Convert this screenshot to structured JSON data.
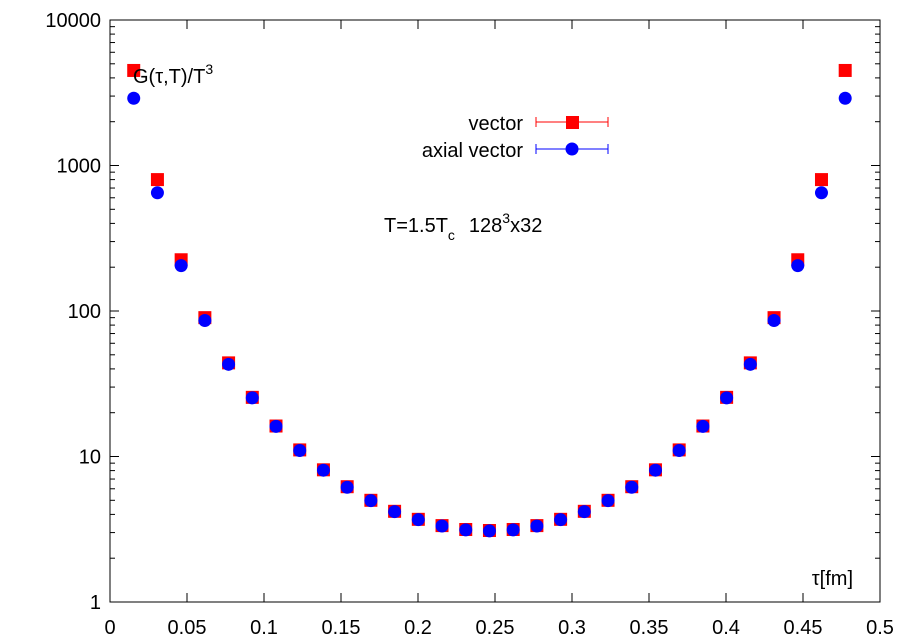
{
  "chart_data": {
    "type": "scatter",
    "ylabel": "G(τ,T)/T³",
    "ylabel_parts": {
      "main": "G(τ,T)/T",
      "sup": "3"
    },
    "xlabel": "τ[fm]",
    "annotation": "T=1.5Tc 128³x32",
    "annotation_parts": {
      "a": "T=1.5T",
      "a_sub": "c",
      "b": "128",
      "b_sup": "3",
      "c": "x32"
    },
    "xlim": [
      0,
      0.5
    ],
    "ylim": [
      1,
      10000
    ],
    "yscale": "log",
    "grid": false,
    "legend_position": "top-center",
    "xticks": [
      "0",
      "0.05",
      "0.1",
      "0.15",
      "0.2",
      "0.25",
      "0.3",
      "0.35",
      "0.4",
      "0.45",
      "0.5"
    ],
    "yticks": [
      "1",
      "10",
      "100",
      "1000",
      "10000"
    ],
    "x": [
      0.0154,
      0.0308,
      0.0462,
      0.0616,
      0.077,
      0.0924,
      0.1078,
      0.1232,
      0.1386,
      0.154,
      0.1694,
      0.1848,
      0.2002,
      0.2156,
      0.231,
      0.2464,
      0.2618,
      0.2772,
      0.2926,
      0.308,
      0.3234,
      0.3388,
      0.3542,
      0.3696,
      0.385,
      0.4004,
      0.4158,
      0.4312,
      0.4466,
      0.462,
      0.4774
    ],
    "series": [
      {
        "name": "vector",
        "color": "#ff0000",
        "marker": "square",
        "values": [
          4500,
          800,
          225,
          90,
          44,
          25.5,
          16.2,
          11.1,
          8.1,
          6.2,
          5.0,
          4.2,
          3.7,
          3.35,
          3.15,
          3.1,
          3.15,
          3.35,
          3.7,
          4.2,
          5.0,
          6.2,
          8.1,
          11.1,
          16.2,
          25.5,
          44,
          90,
          225,
          800,
          4500
        ]
      },
      {
        "name": "axial vector",
        "color": "#0000ff",
        "marker": "circle",
        "values": [
          2900,
          650,
          205,
          86,
          43,
          25.3,
          16.1,
          11.0,
          8.05,
          6.15,
          4.97,
          4.18,
          3.68,
          3.33,
          3.13,
          3.08,
          3.13,
          3.33,
          3.68,
          4.18,
          4.97,
          6.15,
          8.05,
          11.0,
          16.1,
          25.3,
          43,
          86,
          205,
          650,
          2900
        ]
      }
    ]
  }
}
